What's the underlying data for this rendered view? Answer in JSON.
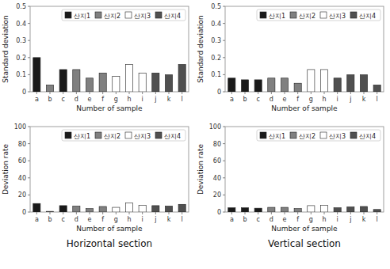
{
  "chart_data": [
    {
      "type": "bar",
      "x_label": "Number of sample",
      "y_label": "Standard deviation",
      "categories": [
        "a",
        "b",
        "c",
        "d",
        "e",
        "f",
        "g",
        "h",
        "i",
        "j",
        "k",
        "l"
      ],
      "series": [
        {
          "name": "산지1",
          "color": "#1a1a1a",
          "values": [
            0.2,
            null,
            0.13,
            null,
            null,
            null,
            null,
            null,
            null,
            null,
            null,
            null
          ]
        },
        {
          "name": "산지2",
          "color": "#808080",
          "values": [
            null,
            0.04,
            null,
            0.13,
            0.08,
            0.11,
            null,
            null,
            null,
            null,
            null,
            null
          ]
        },
        {
          "name": "산지3",
          "color": "#ffffff",
          "values": [
            null,
            null,
            null,
            null,
            null,
            null,
            0.09,
            0.16,
            0.11,
            null,
            null,
            null
          ]
        },
        {
          "name": "산지4",
          "color": "#505050",
          "values": [
            null,
            null,
            null,
            null,
            null,
            null,
            null,
            null,
            null,
            0.11,
            0.1,
            0.16
          ]
        }
      ],
      "ylim": [
        0,
        0.5
      ],
      "yticks": [
        0,
        0.1,
        0.2,
        0.3,
        0.4,
        0.5
      ],
      "grid": false,
      "legend": "upper right"
    },
    {
      "type": "bar",
      "x_label": "Number of sample",
      "y_label": "Standard deviation",
      "categories": [
        "a",
        "b",
        "c",
        "d",
        "e",
        "f",
        "g",
        "h",
        "i",
        "j",
        "k",
        "l"
      ],
      "series": [
        {
          "name": "산지1",
          "color": "#1a1a1a",
          "values": [
            0.08,
            0.07,
            0.07,
            null,
            null,
            null,
            null,
            null,
            null,
            null,
            null,
            null
          ]
        },
        {
          "name": "산지2",
          "color": "#808080",
          "values": [
            null,
            null,
            null,
            0.08,
            0.08,
            0.05,
            null,
            null,
            null,
            null,
            null,
            null
          ]
        },
        {
          "name": "산지3",
          "color": "#ffffff",
          "values": [
            null,
            null,
            null,
            null,
            null,
            null,
            0.13,
            0.13,
            null,
            null,
            null,
            null
          ]
        },
        {
          "name": "산지4",
          "color": "#505050",
          "values": [
            null,
            null,
            null,
            null,
            null,
            null,
            null,
            null,
            0.08,
            0.1,
            0.1,
            0.04
          ]
        }
      ],
      "ylim": [
        0,
        0.5
      ],
      "yticks": [
        0,
        0.1,
        0.2,
        0.3,
        0.4,
        0.5
      ],
      "grid": false,
      "legend": "upper right"
    },
    {
      "type": "bar",
      "x_label": "Number of sample",
      "y_label": "Deviation rate",
      "annotation": "Horizontal section",
      "categories": [
        "a",
        "b",
        "c",
        "d",
        "e",
        "f",
        "g",
        "h",
        "i",
        "j",
        "k",
        "l"
      ],
      "series": [
        {
          "name": "산지1",
          "color": "#1a1a1a",
          "values": [
            10.0,
            null,
            7.5,
            null,
            null,
            null,
            null,
            null,
            null,
            null,
            null,
            null
          ]
        },
        {
          "name": "산지2",
          "color": "#808080",
          "values": [
            null,
            0.8,
            null,
            7.0,
            4.0,
            6.5,
            null,
            null,
            null,
            null,
            null,
            null
          ]
        },
        {
          "name": "산지3",
          "color": "#ffffff",
          "values": [
            null,
            null,
            null,
            null,
            null,
            null,
            5.5,
            10.5,
            8.0,
            null,
            null,
            null
          ]
        },
        {
          "name": "산지4",
          "color": "#505050",
          "values": [
            null,
            null,
            null,
            null,
            null,
            null,
            null,
            null,
            null,
            7.5,
            7.0,
            9.0
          ]
        }
      ],
      "ylim": [
        0,
        100
      ],
      "yticks": [
        0,
        20,
        40,
        60,
        80,
        100
      ],
      "grid": false,
      "legend": "upper right"
    },
    {
      "type": "bar",
      "x_label": "Number of sample",
      "y_label": "Deviation rate",
      "annotation": "Vertical section",
      "categories": [
        "a",
        "b",
        "c",
        "d",
        "e",
        "f",
        "g",
        "h",
        "i",
        "j",
        "k",
        "l"
      ],
      "series": [
        {
          "name": "산지1",
          "color": "#1a1a1a",
          "values": [
            5.0,
            5.0,
            4.5,
            null,
            null,
            null,
            null,
            null,
            null,
            null,
            null,
            null
          ]
        },
        {
          "name": "산지2",
          "color": "#808080",
          "values": [
            null,
            null,
            null,
            5.5,
            5.5,
            4.0,
            null,
            null,
            null,
            null,
            null,
            null
          ]
        },
        {
          "name": "산지3",
          "color": "#ffffff",
          "values": [
            null,
            null,
            null,
            null,
            null,
            null,
            7.5,
            8.0,
            null,
            null,
            null,
            null
          ]
        },
        {
          "name": "산지4",
          "color": "#505050",
          "values": [
            null,
            null,
            null,
            null,
            null,
            null,
            null,
            null,
            5.0,
            6.0,
            6.5,
            3.0
          ]
        }
      ],
      "ylim": [
        0,
        100
      ],
      "yticks": [
        0,
        20,
        40,
        60,
        80,
        100
      ],
      "grid": false,
      "legend": "upper right"
    }
  ]
}
